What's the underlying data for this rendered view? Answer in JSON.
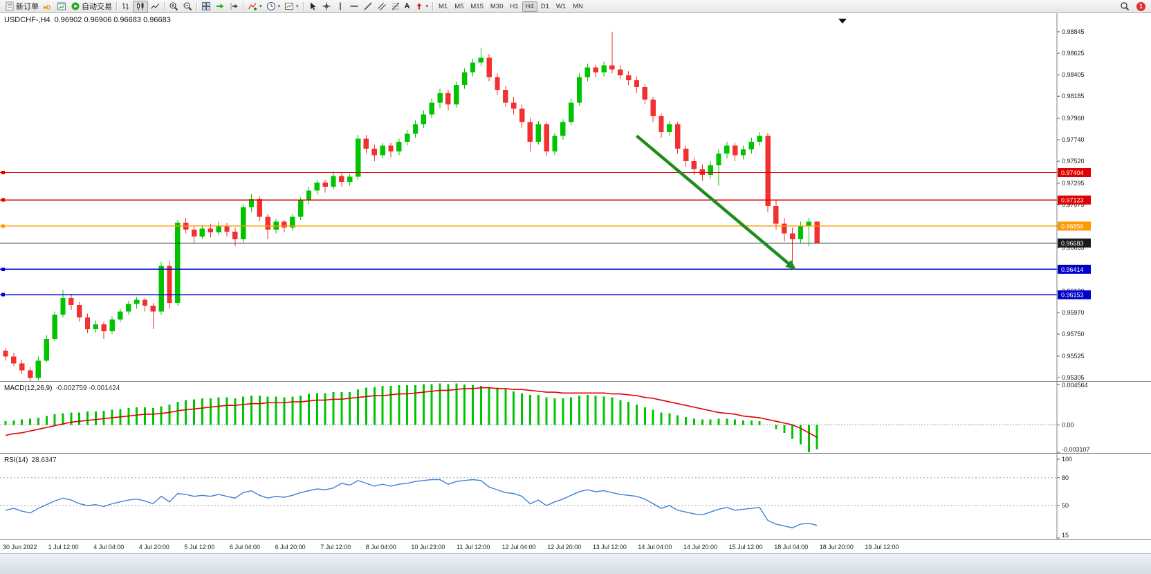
{
  "toolbar": {
    "new_order_label": "新订单",
    "autotrade_label": "自动交易",
    "timeframes": [
      "M1",
      "M5",
      "M15",
      "M30",
      "H1",
      "H4",
      "D1",
      "W1",
      "MN"
    ],
    "active_timeframe": "H4",
    "notification_count": "1"
  },
  "icons": {
    "caret": "▾",
    "text_tool": "A"
  },
  "chart": {
    "symbol_period": "USDCHF-,H4",
    "ohlc": "0.96902 0.96906 0.96683 0.96683"
  },
  "chart_data": {
    "type": "candlestick",
    "symbol": "USDCHF-",
    "timeframe": "H4",
    "colors": {
      "up": "#00c400",
      "down": "#f23030",
      "macd_hist": "#00c400",
      "macd_signal": "#e00000",
      "rsi_line": "#3e7fd6"
    },
    "candles": [
      [
        0.9558,
        0.9561,
        0.9548,
        0.9552
      ],
      [
        0.9552,
        0.9556,
        0.9542,
        0.9545
      ],
      [
        0.9545,
        0.9549,
        0.9534,
        0.9538
      ],
      [
        0.9538,
        0.9541,
        0.9525,
        0.953
      ],
      [
        0.953,
        0.9552,
        0.9528,
        0.9548
      ],
      [
        0.9548,
        0.9574,
        0.9546,
        0.957
      ],
      [
        0.957,
        0.9598,
        0.9568,
        0.9595
      ],
      [
        0.9595,
        0.962,
        0.9592,
        0.9612
      ],
      [
        0.9612,
        0.9616,
        0.96,
        0.9605
      ],
      [
        0.9605,
        0.9608,
        0.9588,
        0.9592
      ],
      [
        0.9592,
        0.9596,
        0.9576,
        0.958
      ],
      [
        0.958,
        0.9589,
        0.9576,
        0.9585
      ],
      [
        0.9585,
        0.9588,
        0.957,
        0.9578
      ],
      [
        0.9578,
        0.9593,
        0.9575,
        0.959
      ],
      [
        0.959,
        0.9601,
        0.9587,
        0.9598
      ],
      [
        0.9598,
        0.9609,
        0.9595,
        0.9606
      ],
      [
        0.9606,
        0.9613,
        0.9601,
        0.961
      ],
      [
        0.961,
        0.9612,
        0.9598,
        0.9604
      ],
      [
        0.9604,
        0.9607,
        0.958,
        0.9598
      ],
      [
        0.9598,
        0.9649,
        0.9595,
        0.9645
      ],
      [
        0.9645,
        0.965,
        0.9601,
        0.9607
      ],
      [
        0.9607,
        0.9692,
        0.9604,
        0.9689
      ],
      [
        0.9689,
        0.9694,
        0.9678,
        0.9682
      ],
      [
        0.9682,
        0.9686,
        0.9668,
        0.9675
      ],
      [
        0.9675,
        0.9687,
        0.9672,
        0.9683
      ],
      [
        0.9683,
        0.9688,
        0.9674,
        0.9679
      ],
      [
        0.9679,
        0.969,
        0.9676,
        0.9686
      ],
      [
        0.9686,
        0.9689,
        0.9675,
        0.968
      ],
      [
        0.968,
        0.9684,
        0.9665,
        0.9672
      ],
      [
        0.9672,
        0.9708,
        0.9669,
        0.9705
      ],
      [
        0.9705,
        0.9718,
        0.97,
        0.9713
      ],
      [
        0.9713,
        0.9716,
        0.9691,
        0.9695
      ],
      [
        0.9695,
        0.9698,
        0.9672,
        0.9682
      ],
      [
        0.9682,
        0.9693,
        0.9678,
        0.969
      ],
      [
        0.969,
        0.9692,
        0.9679,
        0.9684
      ],
      [
        0.9684,
        0.9698,
        0.9681,
        0.9695
      ],
      [
        0.9695,
        0.9715,
        0.9692,
        0.9712
      ],
      [
        0.9712,
        0.9726,
        0.9708,
        0.9722
      ],
      [
        0.9722,
        0.9733,
        0.9718,
        0.973
      ],
      [
        0.973,
        0.9733,
        0.972,
        0.9726
      ],
      [
        0.9726,
        0.9742,
        0.9723,
        0.9737
      ],
      [
        0.9737,
        0.974,
        0.9726,
        0.9731
      ],
      [
        0.9731,
        0.9739,
        0.9727,
        0.9736
      ],
      [
        0.9736,
        0.9779,
        0.9733,
        0.9775
      ],
      [
        0.9775,
        0.9779,
        0.976,
        0.9765
      ],
      [
        0.9765,
        0.9769,
        0.9752,
        0.9758
      ],
      [
        0.9758,
        0.9771,
        0.9755,
        0.9768
      ],
      [
        0.9768,
        0.9771,
        0.9756,
        0.9762
      ],
      [
        0.9762,
        0.9775,
        0.9758,
        0.9772
      ],
      [
        0.9772,
        0.9784,
        0.9768,
        0.978
      ],
      [
        0.978,
        0.9794,
        0.9776,
        0.979
      ],
      [
        0.979,
        0.9804,
        0.9786,
        0.98
      ],
      [
        0.98,
        0.9816,
        0.9796,
        0.9812
      ],
      [
        0.9812,
        0.9826,
        0.9806,
        0.9822
      ],
      [
        0.9822,
        0.9825,
        0.9804,
        0.981
      ],
      [
        0.981,
        0.9834,
        0.9807,
        0.983
      ],
      [
        0.983,
        0.9847,
        0.9826,
        0.9843
      ],
      [
        0.9843,
        0.9857,
        0.9839,
        0.9853
      ],
      [
        0.9853,
        0.9868,
        0.9849,
        0.9858
      ],
      [
        0.9858,
        0.9862,
        0.9834,
        0.9838
      ],
      [
        0.9838,
        0.9842,
        0.982,
        0.9825
      ],
      [
        0.9825,
        0.9829,
        0.9808,
        0.9812
      ],
      [
        0.9812,
        0.9818,
        0.98,
        0.9806
      ],
      [
        0.9806,
        0.981,
        0.9786,
        0.9792
      ],
      [
        0.9792,
        0.9796,
        0.9762,
        0.9772
      ],
      [
        0.9772,
        0.9793,
        0.9769,
        0.979
      ],
      [
        0.979,
        0.9792,
        0.9757,
        0.9762
      ],
      [
        0.9762,
        0.9781,
        0.9758,
        0.9778
      ],
      [
        0.9778,
        0.9795,
        0.9774,
        0.9792
      ],
      [
        0.9792,
        0.9816,
        0.9789,
        0.9812
      ],
      [
        0.9812,
        0.9842,
        0.9809,
        0.9838
      ],
      [
        0.9838,
        0.9852,
        0.9834,
        0.9848
      ],
      [
        0.9848,
        0.9851,
        0.9838,
        0.9843
      ],
      [
        0.9843,
        0.9854,
        0.9839,
        0.985
      ],
      [
        0.985,
        0.98845,
        0.9842,
        0.9846
      ],
      [
        0.9846,
        0.985,
        0.9836,
        0.984
      ],
      [
        0.984,
        0.9844,
        0.983,
        0.9835
      ],
      [
        0.9835,
        0.9839,
        0.9822,
        0.9828
      ],
      [
        0.9828,
        0.9831,
        0.981,
        0.9815
      ],
      [
        0.9815,
        0.9818,
        0.9792,
        0.9798
      ],
      [
        0.9798,
        0.9801,
        0.9776,
        0.9782
      ],
      [
        0.9782,
        0.9793,
        0.9778,
        0.979
      ],
      [
        0.979,
        0.9792,
        0.976,
        0.9765
      ],
      [
        0.9765,
        0.9768,
        0.9746,
        0.9752
      ],
      [
        0.9752,
        0.9756,
        0.9738,
        0.9744
      ],
      [
        0.9744,
        0.9749,
        0.9732,
        0.9738
      ],
      [
        0.9738,
        0.9752,
        0.9734,
        0.9748
      ],
      [
        0.9748,
        0.9764,
        0.9727,
        0.976
      ],
      [
        0.976,
        0.9772,
        0.9755,
        0.9768
      ],
      [
        0.9768,
        0.9771,
        0.9752,
        0.9758
      ],
      [
        0.9758,
        0.9768,
        0.9754,
        0.9764
      ],
      [
        0.9764,
        0.9776,
        0.976,
        0.9772
      ],
      [
        0.9772,
        0.9782,
        0.9768,
        0.9778
      ],
      [
        0.9778,
        0.9781,
        0.97,
        0.9706
      ],
      [
        0.9706,
        0.9712,
        0.9682,
        0.9688
      ],
      [
        0.9688,
        0.9694,
        0.967,
        0.9678
      ],
      [
        0.9678,
        0.9684,
        0.9641,
        0.9672
      ],
      [
        0.9672,
        0.969,
        0.9668,
        0.9686
      ],
      [
        0.9686,
        0.9694,
        0.9665,
        0.969
      ],
      [
        0.96902,
        0.96906,
        0.96683,
        0.96683
      ]
    ],
    "hlines": [
      {
        "price": 0.97404,
        "color": "#dd0000",
        "badge": "0.97404",
        "w": 1.3,
        "handle": true
      },
      {
        "price": 0.97123,
        "color": "#dd0000",
        "badge": "0.97123",
        "w": 1.3,
        "handle": true
      },
      {
        "price": 0.96856,
        "color": "#ff9900",
        "badge": "0.96856",
        "w": 1.6,
        "handle": true
      },
      {
        "price": 0.96683,
        "color": "#1a1a1a",
        "badge": "0.96683",
        "w": 1,
        "handle": false
      },
      {
        "price": 0.96414,
        "color": "#0000cc",
        "badge": "0.96414",
        "w": 1.3,
        "handle": true
      },
      {
        "price": 0.96153,
        "color": "#0000cc",
        "badge": "0.96153",
        "w": 1.3,
        "handle": true
      }
    ],
    "price_ticks": [
      "0.98845",
      "0.98625",
      "0.98405",
      "0.98185",
      "0.97960",
      "0.97740",
      "0.97520",
      "0.97295",
      "0.97075",
      "0.96855",
      "0.96635",
      "0.96415",
      "0.96190",
      "0.95970",
      "0.95750",
      "0.95525",
      "0.95305"
    ],
    "arrow": {
      "from_index": 77,
      "from_price": 0.9778,
      "to_index": 96.2,
      "to_price": 0.96425,
      "color": "#1e8c1e"
    },
    "macd": {
      "name": "MACD(12,26,9)",
      "values": "-0.002759 -0.001424",
      "axis_labels": [
        "0.004564",
        "0.00",
        "-0.003107"
      ],
      "histogram": [
        0.0004,
        0.0005,
        0.0006,
        0.0007,
        0.0008,
        0.001,
        0.0012,
        0.0013,
        0.0014,
        0.0014,
        0.0015,
        0.0015,
        0.0016,
        0.0017,
        0.0018,
        0.0019,
        0.002,
        0.002,
        0.0019,
        0.0021,
        0.0023,
        0.0026,
        0.0028,
        0.0029,
        0.003,
        0.003,
        0.0031,
        0.0031,
        0.003,
        0.0032,
        0.0033,
        0.0033,
        0.0032,
        0.0032,
        0.0031,
        0.0032,
        0.0033,
        0.0035,
        0.0036,
        0.0036,
        0.0037,
        0.0037,
        0.0037,
        0.004,
        0.0042,
        0.0043,
        0.0044,
        0.0044,
        0.0045,
        0.0045,
        0.0045,
        0.0046,
        0.0046,
        0.0047,
        0.0046,
        0.0047,
        0.004564,
        0.0045,
        0.0044,
        0.0043,
        0.0042,
        0.004,
        0.0038,
        0.0036,
        0.0034,
        0.0034,
        0.0031,
        0.003,
        0.003,
        0.0031,
        0.0033,
        0.0034,
        0.0033,
        0.0032,
        0.0031,
        0.0028,
        0.0026,
        0.0023,
        0.002,
        0.0017,
        0.0014,
        0.0013,
        0.0011,
        0.0009,
        0.0007,
        0.0006,
        0.0006,
        0.0007,
        0.0007,
        0.0006,
        0.0005,
        0.0005,
        0.0004,
        0.0,
        -0.0005,
        -0.0009,
        -0.0016,
        -0.0022,
        -0.0031,
        -0.002759
      ],
      "signal": [
        -0.0012,
        -0.001,
        -0.0009,
        -0.0007,
        -0.0005,
        -0.0003,
        -0.0001,
        0.0001,
        0.0003,
        0.0004,
        0.0005,
        0.0006,
        0.0007,
        0.0008,
        0.0009,
        0.001,
        0.0011,
        0.0012,
        0.0012,
        0.0013,
        0.0014,
        0.0016,
        0.0017,
        0.0018,
        0.0019,
        0.002,
        0.0021,
        0.0022,
        0.0022,
        0.0023,
        0.0024,
        0.0024,
        0.0025,
        0.0025,
        0.0025,
        0.0026,
        0.0026,
        0.0027,
        0.0028,
        0.0028,
        0.0029,
        0.0029,
        0.003,
        0.0031,
        0.0032,
        0.0033,
        0.0033,
        0.0034,
        0.0035,
        0.0035,
        0.0036,
        0.0037,
        0.0038,
        0.0039,
        0.0039,
        0.004,
        0.0041,
        0.0041,
        0.0042,
        0.0042,
        0.0041,
        0.0041,
        0.004,
        0.004,
        0.0039,
        0.0038,
        0.0037,
        0.0037,
        0.0036,
        0.0036,
        0.0036,
        0.0036,
        0.0036,
        0.0036,
        0.0035,
        0.0035,
        0.0034,
        0.0033,
        0.0031,
        0.003,
        0.0028,
        0.0026,
        0.0024,
        0.0022,
        0.002,
        0.0018,
        0.0016,
        0.0014,
        0.0013,
        0.0012,
        0.001,
        0.0009,
        0.0008,
        0.0006,
        0.0004,
        0.0002,
        0.0,
        -0.0004,
        -0.0009,
        -0.001424
      ]
    },
    "rsi": {
      "name": "RSI(14)",
      "value": "28.6347",
      "axis_labels": [
        "100",
        "80",
        "50",
        "15"
      ],
      "levels": [
        80,
        50
      ],
      "values": [
        45,
        47,
        44,
        42,
        47,
        51,
        55,
        58,
        56,
        52,
        50,
        51,
        49,
        52,
        54,
        56,
        57,
        55,
        52,
        60,
        54,
        63,
        62,
        60,
        61,
        60,
        62,
        60,
        58,
        64,
        66,
        61,
        58,
        60,
        59,
        61,
        64,
        66,
        68,
        67,
        69,
        74,
        72,
        77,
        74,
        71,
        73,
        71,
        73,
        74,
        76,
        77,
        78,
        78,
        73,
        76,
        77,
        78,
        77,
        70,
        67,
        64,
        63,
        60,
        52,
        56,
        50,
        54,
        57,
        61,
        65,
        67,
        65,
        66,
        64,
        62,
        61,
        60,
        57,
        52,
        47,
        50,
        45,
        43,
        41,
        40,
        43,
        46,
        48,
        45,
        46,
        47,
        48,
        34,
        30,
        28,
        26,
        30,
        31,
        28.6347
      ]
    },
    "time_labels": [
      "30 Jun 2022",
      "1 Jul 12:00",
      "4 Jul 04:00",
      "4 Jul 20:00",
      "5 Jul 12:00",
      "6 Jul 04:00",
      "6 Jul 20:00",
      "7 Jul 12:00",
      "8 Jul 04:00",
      "10 Jul 23:00",
      "11 Jul 12:00",
      "12 Jul 04:00",
      "12 Jul 20:00",
      "13 Jul 12:00",
      "14 Jul 04:00",
      "14 Jul 20:00",
      "15 Jul 12:00",
      "18 Jul 04:00",
      "18 Jul 20:00",
      "19 Jul 12:00"
    ]
  }
}
